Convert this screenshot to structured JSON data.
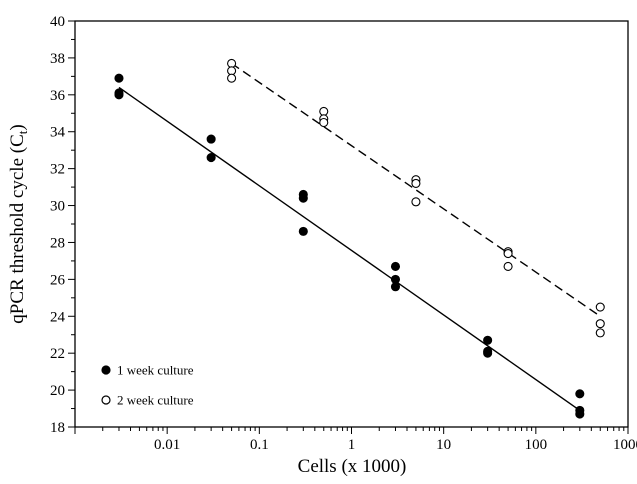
{
  "chart_data": {
    "type": "scatter",
    "xlabel": "Cells (x 1000)",
    "ylabel_main": "qPCR threshold cycle (C",
    "ylabel_sub": "t",
    "ylabel_close": ")",
    "x_scale": "log",
    "xlim": [
      0.001,
      1000
    ],
    "ylim": [
      18,
      40
    ],
    "x_ticks": [
      0.01,
      0.1,
      1,
      10,
      100,
      1000
    ],
    "x_tick_labels": [
      "0.01",
      "0.1",
      "1",
      "10",
      "100",
      "1000"
    ],
    "y_ticks": [
      18,
      20,
      22,
      24,
      26,
      28,
      30,
      32,
      34,
      36,
      38,
      40
    ],
    "y_tick_labels": [
      "18",
      "20",
      "22",
      "24",
      "26",
      "28",
      "30",
      "32",
      "34",
      "36",
      "38",
      "40"
    ],
    "grid": false,
    "legend_position": "bottom-left",
    "series": [
      {
        "name": "1 week culture",
        "marker": "filled-circle",
        "color": "#000000",
        "points": [
          [
            0.003,
            36.9
          ],
          [
            0.003,
            36.1
          ],
          [
            0.003,
            36.0
          ],
          [
            0.03,
            33.6
          ],
          [
            0.03,
            32.6
          ],
          [
            0.3,
            30.6
          ],
          [
            0.3,
            30.4
          ],
          [
            0.3,
            28.6
          ],
          [
            3,
            26.7
          ],
          [
            3,
            26.0
          ],
          [
            3,
            25.6
          ],
          [
            30,
            22.7
          ],
          [
            30,
            22.1
          ],
          [
            30,
            22.0
          ],
          [
            300,
            19.8
          ],
          [
            300,
            18.9
          ],
          [
            300,
            18.7
          ]
        ],
        "fit": {
          "line_style": "solid",
          "x": [
            0.003,
            300
          ],
          "y": [
            36.4,
            18.9
          ]
        }
      },
      {
        "name": "2 week culture",
        "marker": "open-circle",
        "color": "#000000",
        "points": [
          [
            0.05,
            37.7
          ],
          [
            0.05,
            37.3
          ],
          [
            0.05,
            36.9
          ],
          [
            0.5,
            35.1
          ],
          [
            0.5,
            34.7
          ],
          [
            0.5,
            34.5
          ],
          [
            5,
            31.4
          ],
          [
            5,
            31.2
          ],
          [
            5,
            30.2
          ],
          [
            50,
            27.5
          ],
          [
            50,
            27.4
          ],
          [
            50,
            26.7
          ],
          [
            500,
            24.5
          ],
          [
            500,
            23.6
          ],
          [
            500,
            23.1
          ]
        ],
        "fit": {
          "line_style": "dashed",
          "x": [
            0.05,
            500
          ],
          "y": [
            37.7,
            24.0
          ]
        }
      }
    ]
  }
}
